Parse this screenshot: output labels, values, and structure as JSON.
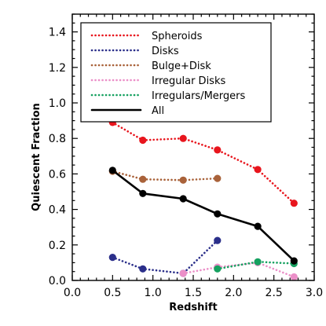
{
  "chart_data": {
    "type": "line",
    "xlabel": "Redshift",
    "ylabel": "Quiescent Fraction",
    "xlim": [
      0.0,
      3.0
    ],
    "ylim": [
      0.0,
      1.5
    ],
    "x_ticks": [
      "0.0",
      "0.5",
      "1.0",
      "1.5",
      "2.0",
      "2.5",
      "3.0"
    ],
    "y_ticks": [
      "0.0",
      "0.2",
      "0.4",
      "0.6",
      "0.8",
      "1.0",
      "1.2",
      "1.4"
    ],
    "legend_position": "top-right",
    "grid": false,
    "series": [
      {
        "name": "Spheroids",
        "color": "#e8151d",
        "line_style": "dotted",
        "x": [
          0.5,
          0.875,
          1.375,
          1.8,
          2.3,
          2.75
        ],
        "y": [
          0.89,
          0.79,
          0.8,
          0.735,
          0.625,
          0.435
        ]
      },
      {
        "name": "Disks",
        "color": "#2b2f8a",
        "line_style": "dotted",
        "x": [
          0.5,
          0.875,
          1.375,
          1.8
        ],
        "y": [
          0.13,
          0.065,
          0.04,
          0.225
        ]
      },
      {
        "name": "Bulge+Disk",
        "color": "#a9623a",
        "line_style": "dotted",
        "x": [
          0.5,
          0.875,
          1.375,
          1.8
        ],
        "y": [
          0.615,
          0.57,
          0.565,
          0.575
        ]
      },
      {
        "name": "Irregular Disks",
        "color": "#eb8fc8",
        "line_style": "dotted",
        "x": [
          1.375,
          1.8,
          2.3,
          2.75
        ],
        "y": [
          0.04,
          0.075,
          0.1,
          0.02
        ]
      },
      {
        "name": "Irregulars/Mergers",
        "color": "#16a160",
        "line_style": "dotted",
        "x": [
          1.8,
          2.3,
          2.75
        ],
        "y": [
          0.065,
          0.105,
          0.095
        ]
      },
      {
        "name": "All",
        "color": "#000000",
        "line_style": "solid",
        "x": [
          0.5,
          0.875,
          1.375,
          1.8,
          2.3,
          2.75
        ],
        "y": [
          0.62,
          0.49,
          0.46,
          0.375,
          0.305,
          0.11
        ]
      }
    ]
  }
}
